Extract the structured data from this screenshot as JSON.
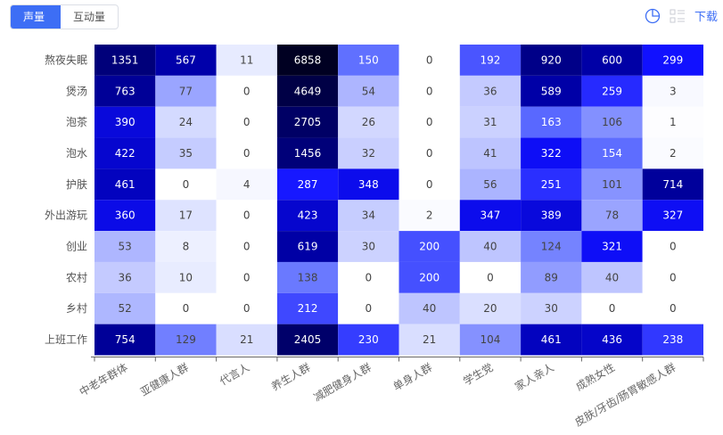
{
  "toolbar": {
    "tabs": [
      "声量",
      "互动量"
    ],
    "active": 0,
    "download": "下载"
  },
  "icons": {
    "chart": "pie-chart-icon",
    "table": "list-view-icon"
  },
  "chart_data": {
    "type": "heatmap",
    "rows": [
      "熬夜失眠",
      "煲汤",
      "泡茶",
      "泡水",
      "护肤",
      "外出游玩",
      "创业",
      "农村",
      "乡村",
      "上班工作"
    ],
    "columns": [
      "中老年群体",
      "亚健康人群",
      "代言人",
      "养生人群",
      "减肥健身人群",
      "单身人群",
      "学生党",
      "家人亲人",
      "成熟女性",
      "皮肤/牙齿/肠胃敏感人群"
    ],
    "values": [
      [
        1351,
        567,
        11,
        6858,
        150,
        0,
        192,
        920,
        600,
        299
      ],
      [
        763,
        77,
        0,
        4649,
        54,
        0,
        36,
        589,
        259,
        3
      ],
      [
        390,
        24,
        0,
        2705,
        26,
        0,
        31,
        163,
        106,
        1
      ],
      [
        422,
        35,
        0,
        1456,
        32,
        0,
        41,
        322,
        154,
        2
      ],
      [
        461,
        0,
        4,
        287,
        348,
        0,
        56,
        251,
        101,
        714
      ],
      [
        360,
        17,
        0,
        423,
        34,
        2,
        347,
        389,
        78,
        327
      ],
      [
        53,
        8,
        0,
        619,
        30,
        200,
        40,
        124,
        321,
        0
      ],
      [
        36,
        10,
        0,
        138,
        0,
        200,
        0,
        89,
        40,
        0
      ],
      [
        52,
        0,
        0,
        212,
        0,
        40,
        20,
        30,
        0,
        0
      ],
      [
        754,
        129,
        21,
        2405,
        230,
        21,
        104,
        461,
        436,
        238
      ]
    ],
    "colors": {
      "low": "#ffffff",
      "mid": "#0000ff",
      "high": "#000020"
    }
  }
}
